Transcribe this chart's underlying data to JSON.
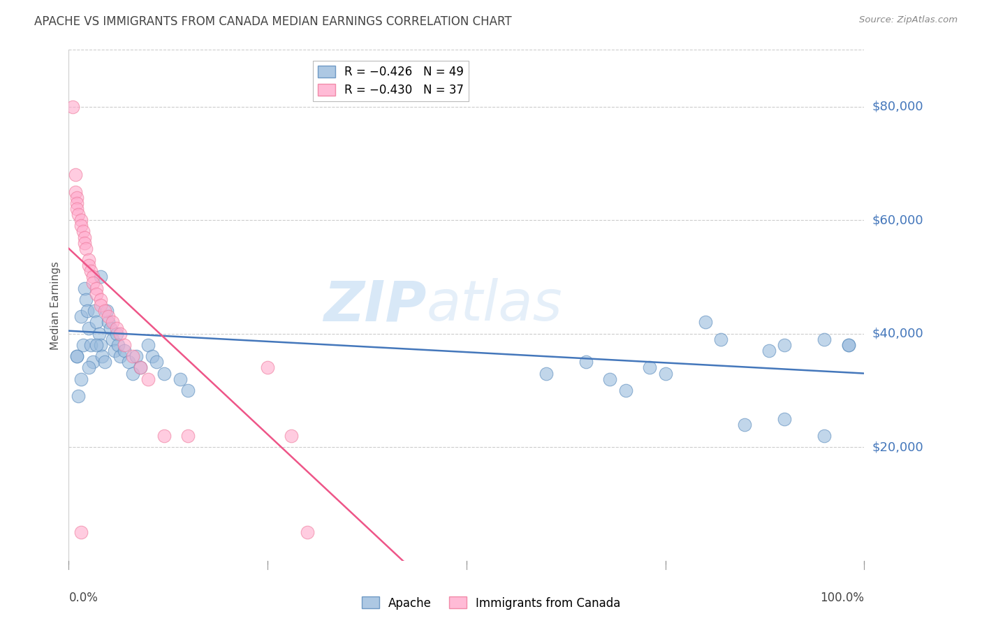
{
  "title": "APACHE VS IMMIGRANTS FROM CANADA MEDIAN EARNINGS CORRELATION CHART",
  "source": "Source: ZipAtlas.com",
  "ylabel": "Median Earnings",
  "ytick_labels": [
    "$20,000",
    "$40,000",
    "$60,000",
    "$80,000"
  ],
  "ytick_values": [
    20000,
    40000,
    60000,
    80000
  ],
  "ymin": 0,
  "ymax": 90000,
  "xmin": 0.0,
  "xmax": 100.0,
  "watermark_zip": "ZIP",
  "watermark_atlas": "atlas",
  "blue_color": "#99BBDD",
  "pink_color": "#FFAACC",
  "blue_edge": "#5588BB",
  "pink_edge": "#EE7799",
  "blue_line_color": "#4477BB",
  "pink_line_color": "#EE5588",
  "dashed_line_color": "#CCCCCC",
  "title_color": "#444444",
  "ytick_color": "#4477BB",
  "source_color": "#888888",
  "apache_dots": [
    [
      1.0,
      36000
    ],
    [
      1.2,
      29000
    ],
    [
      1.5,
      43000
    ],
    [
      1.8,
      38000
    ],
    [
      2.0,
      48000
    ],
    [
      2.2,
      46000
    ],
    [
      2.3,
      44000
    ],
    [
      2.5,
      41000
    ],
    [
      2.8,
      38000
    ],
    [
      3.0,
      35000
    ],
    [
      3.2,
      44000
    ],
    [
      3.5,
      42000
    ],
    [
      3.8,
      40000
    ],
    [
      4.0,
      38000
    ],
    [
      4.0,
      50000
    ],
    [
      4.2,
      36000
    ],
    [
      4.5,
      35000
    ],
    [
      4.8,
      44000
    ],
    [
      5.0,
      42000
    ],
    [
      5.2,
      41000
    ],
    [
      5.5,
      39000
    ],
    [
      5.8,
      37000
    ],
    [
      6.0,
      40000
    ],
    [
      6.2,
      38000
    ],
    [
      6.5,
      36000
    ],
    [
      7.0,
      37000
    ],
    [
      7.5,
      35000
    ],
    [
      8.0,
      33000
    ],
    [
      8.5,
      36000
    ],
    [
      9.0,
      34000
    ],
    [
      10.0,
      38000
    ],
    [
      10.5,
      36000
    ],
    [
      11.0,
      35000
    ],
    [
      12.0,
      33000
    ],
    [
      14.0,
      32000
    ],
    [
      15.0,
      30000
    ],
    [
      1.5,
      32000
    ],
    [
      1.0,
      36000
    ],
    [
      2.5,
      34000
    ],
    [
      3.5,
      38000
    ],
    [
      60.0,
      33000
    ],
    [
      65.0,
      35000
    ],
    [
      68.0,
      32000
    ],
    [
      70.0,
      30000
    ],
    [
      73.0,
      34000
    ],
    [
      75.0,
      33000
    ],
    [
      80.0,
      42000
    ],
    [
      82.0,
      39000
    ],
    [
      88.0,
      37000
    ],
    [
      90.0,
      38000
    ],
    [
      95.0,
      39000
    ],
    [
      98.0,
      38000
    ],
    [
      85.0,
      24000
    ],
    [
      90.0,
      25000
    ],
    [
      95.0,
      22000
    ],
    [
      98.0,
      38000
    ]
  ],
  "canada_dots": [
    [
      0.5,
      80000
    ],
    [
      0.8,
      68000
    ],
    [
      0.8,
      65000
    ],
    [
      1.0,
      64000
    ],
    [
      1.0,
      63000
    ],
    [
      1.0,
      62000
    ],
    [
      1.2,
      61000
    ],
    [
      1.5,
      60000
    ],
    [
      1.5,
      59000
    ],
    [
      1.8,
      58000
    ],
    [
      2.0,
      57000
    ],
    [
      2.0,
      56000
    ],
    [
      2.2,
      55000
    ],
    [
      2.5,
      53000
    ],
    [
      2.5,
      52000
    ],
    [
      2.8,
      51000
    ],
    [
      3.0,
      50000
    ],
    [
      3.0,
      49000
    ],
    [
      3.5,
      48000
    ],
    [
      3.5,
      47000
    ],
    [
      4.0,
      46000
    ],
    [
      4.0,
      45000
    ],
    [
      4.5,
      44000
    ],
    [
      5.0,
      43000
    ],
    [
      5.5,
      42000
    ],
    [
      6.0,
      41000
    ],
    [
      6.5,
      40000
    ],
    [
      7.0,
      38000
    ],
    [
      8.0,
      36000
    ],
    [
      9.0,
      34000
    ],
    [
      10.0,
      32000
    ],
    [
      12.0,
      22000
    ],
    [
      15.0,
      22000
    ],
    [
      25.0,
      34000
    ],
    [
      28.0,
      22000
    ],
    [
      30.0,
      5000
    ],
    [
      1.5,
      5000
    ]
  ],
  "apache_line_x": [
    0.0,
    100.0
  ],
  "apache_line_y": [
    40500,
    33000
  ],
  "canada_line_x": [
    0.0,
    42.0
  ],
  "canada_line_y": [
    55000,
    0
  ],
  "dashed_line_x": [
    42.0,
    100.0
  ],
  "dashed_line_y": [
    0,
    -28000
  ]
}
